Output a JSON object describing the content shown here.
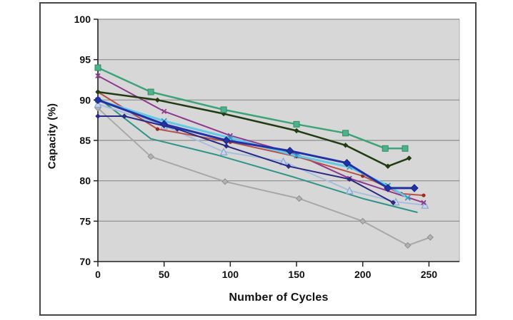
{
  "figure": {
    "ylabel": "Capacity (%)",
    "xlabel": "Number of Cycles"
  },
  "chart_data": {
    "type": "line",
    "title": "",
    "xlabel": "Number of Cycles",
    "ylabel": "Capacity (%)",
    "xlim": [
      0,
      273
    ],
    "ylim": [
      70,
      100
    ],
    "xticks": [
      0,
      50,
      100,
      150,
      200,
      250
    ],
    "yticks": [
      70,
      75,
      80,
      85,
      90,
      95,
      100
    ],
    "grid": "horizontal",
    "legend": "none",
    "plot_bg": "#d7d7d7",
    "grid_color": "#8c8c8c",
    "axis_color": "#222222",
    "frame_color": "#474747",
    "series": [
      {
        "name": "teal-line",
        "color": "#2f958a",
        "width": 2,
        "marker": {
          "type": "none",
          "size": 0,
          "fill": "#2f958a",
          "stroke": "#2f958a"
        },
        "x": [
          0,
          40,
          90,
          147,
          200,
          241
        ],
        "y": [
          90.3,
          85.2,
          83.2,
          80.5,
          77.8,
          76.1
        ]
      },
      {
        "name": "gray-diamonds",
        "color": "#a8a8a8",
        "width": 2,
        "marker": {
          "type": "diamond",
          "size": 4,
          "fill": "#b2b2b2",
          "stroke": "#8f8f8f"
        },
        "x": [
          0,
          40,
          96,
          152,
          200,
          234,
          251
        ],
        "y": [
          89,
          83,
          79.9,
          77.8,
          75,
          72,
          73
        ]
      },
      {
        "name": "lightblue-triangles",
        "color": "#a8bede",
        "width": 2,
        "marker": {
          "type": "triangle",
          "size": 4.5,
          "fill": "#c6d6ec",
          "stroke": "#8aa6cc"
        },
        "x": [
          0,
          50,
          95,
          140,
          190,
          225,
          247
        ],
        "y": [
          89.5,
          86.8,
          83.6,
          82.4,
          78.8,
          77.4,
          77
        ]
      },
      {
        "name": "magenta-line",
        "color": "#8e3a8e",
        "width": 2,
        "marker": {
          "type": "x",
          "size": 3,
          "fill": "#8e3a8e",
          "stroke": "#8e3a8e"
        },
        "x": [
          0,
          50,
          100,
          150,
          190,
          246
        ],
        "y": [
          93,
          88.6,
          85.6,
          83.3,
          80.3,
          77.3
        ]
      },
      {
        "name": "red-dots",
        "color": "#b85048",
        "width": 2,
        "marker": {
          "type": "dot",
          "size": 2.6,
          "fill": "#992b22",
          "stroke": "#992b22"
        },
        "x": [
          0,
          45,
          100,
          150,
          200,
          229,
          246
        ],
        "y": [
          91,
          86.4,
          84.8,
          83,
          80.6,
          78.4,
          78.2
        ]
      },
      {
        "name": "navy-flat-start",
        "color": "#2a2a84",
        "width": 2,
        "marker": {
          "type": "diamond",
          "size": 3,
          "fill": "#2a2a84",
          "stroke": "#2a2a84"
        },
        "x": [
          0,
          20,
          60,
          97,
          144,
          190,
          223
        ],
        "y": [
          88,
          88,
          86.4,
          84.3,
          81.8,
          80.2,
          77.3
        ]
      },
      {
        "name": "cyan-x-line",
        "color": "#62c8e8",
        "width": 3,
        "marker": {
          "type": "x",
          "size": 3.5,
          "fill": "#2e9cc8",
          "stroke": "#2e9cc8"
        },
        "x": [
          0,
          50,
          100,
          150,
          190,
          219,
          234
        ],
        "y": [
          90,
          87.4,
          85.3,
          83.1,
          81.7,
          79.4,
          77.9
        ]
      },
      {
        "name": "navy-diamonds",
        "color": "#2232a4",
        "width": 3,
        "marker": {
          "type": "diamond",
          "size": 5,
          "fill": "#2232a4",
          "stroke": "#1a2580"
        },
        "x": [
          0,
          50,
          97,
          145,
          188,
          219,
          239
        ],
        "y": [
          90,
          87,
          85,
          83.7,
          82.2,
          79.1,
          79.1
        ]
      },
      {
        "name": "darkgreen-line",
        "color": "#223c12",
        "width": 2.5,
        "marker": {
          "type": "diamond",
          "size": 3,
          "fill": "#223c12",
          "stroke": "#223c12"
        },
        "x": [
          0,
          45,
          95,
          150,
          187,
          219,
          235
        ],
        "y": [
          91,
          90,
          88.3,
          86.2,
          84.4,
          81.8,
          82.8
        ]
      },
      {
        "name": "seagreen-squares",
        "color": "#3da47a",
        "width": 2.5,
        "marker": {
          "type": "square",
          "size": 4,
          "fill": "#4eb189",
          "stroke": "#2f8f68"
        },
        "x": [
          0,
          40,
          95,
          150,
          187,
          217,
          232
        ],
        "y": [
          94,
          91,
          88.8,
          87,
          85.9,
          84,
          84
        ]
      }
    ]
  }
}
